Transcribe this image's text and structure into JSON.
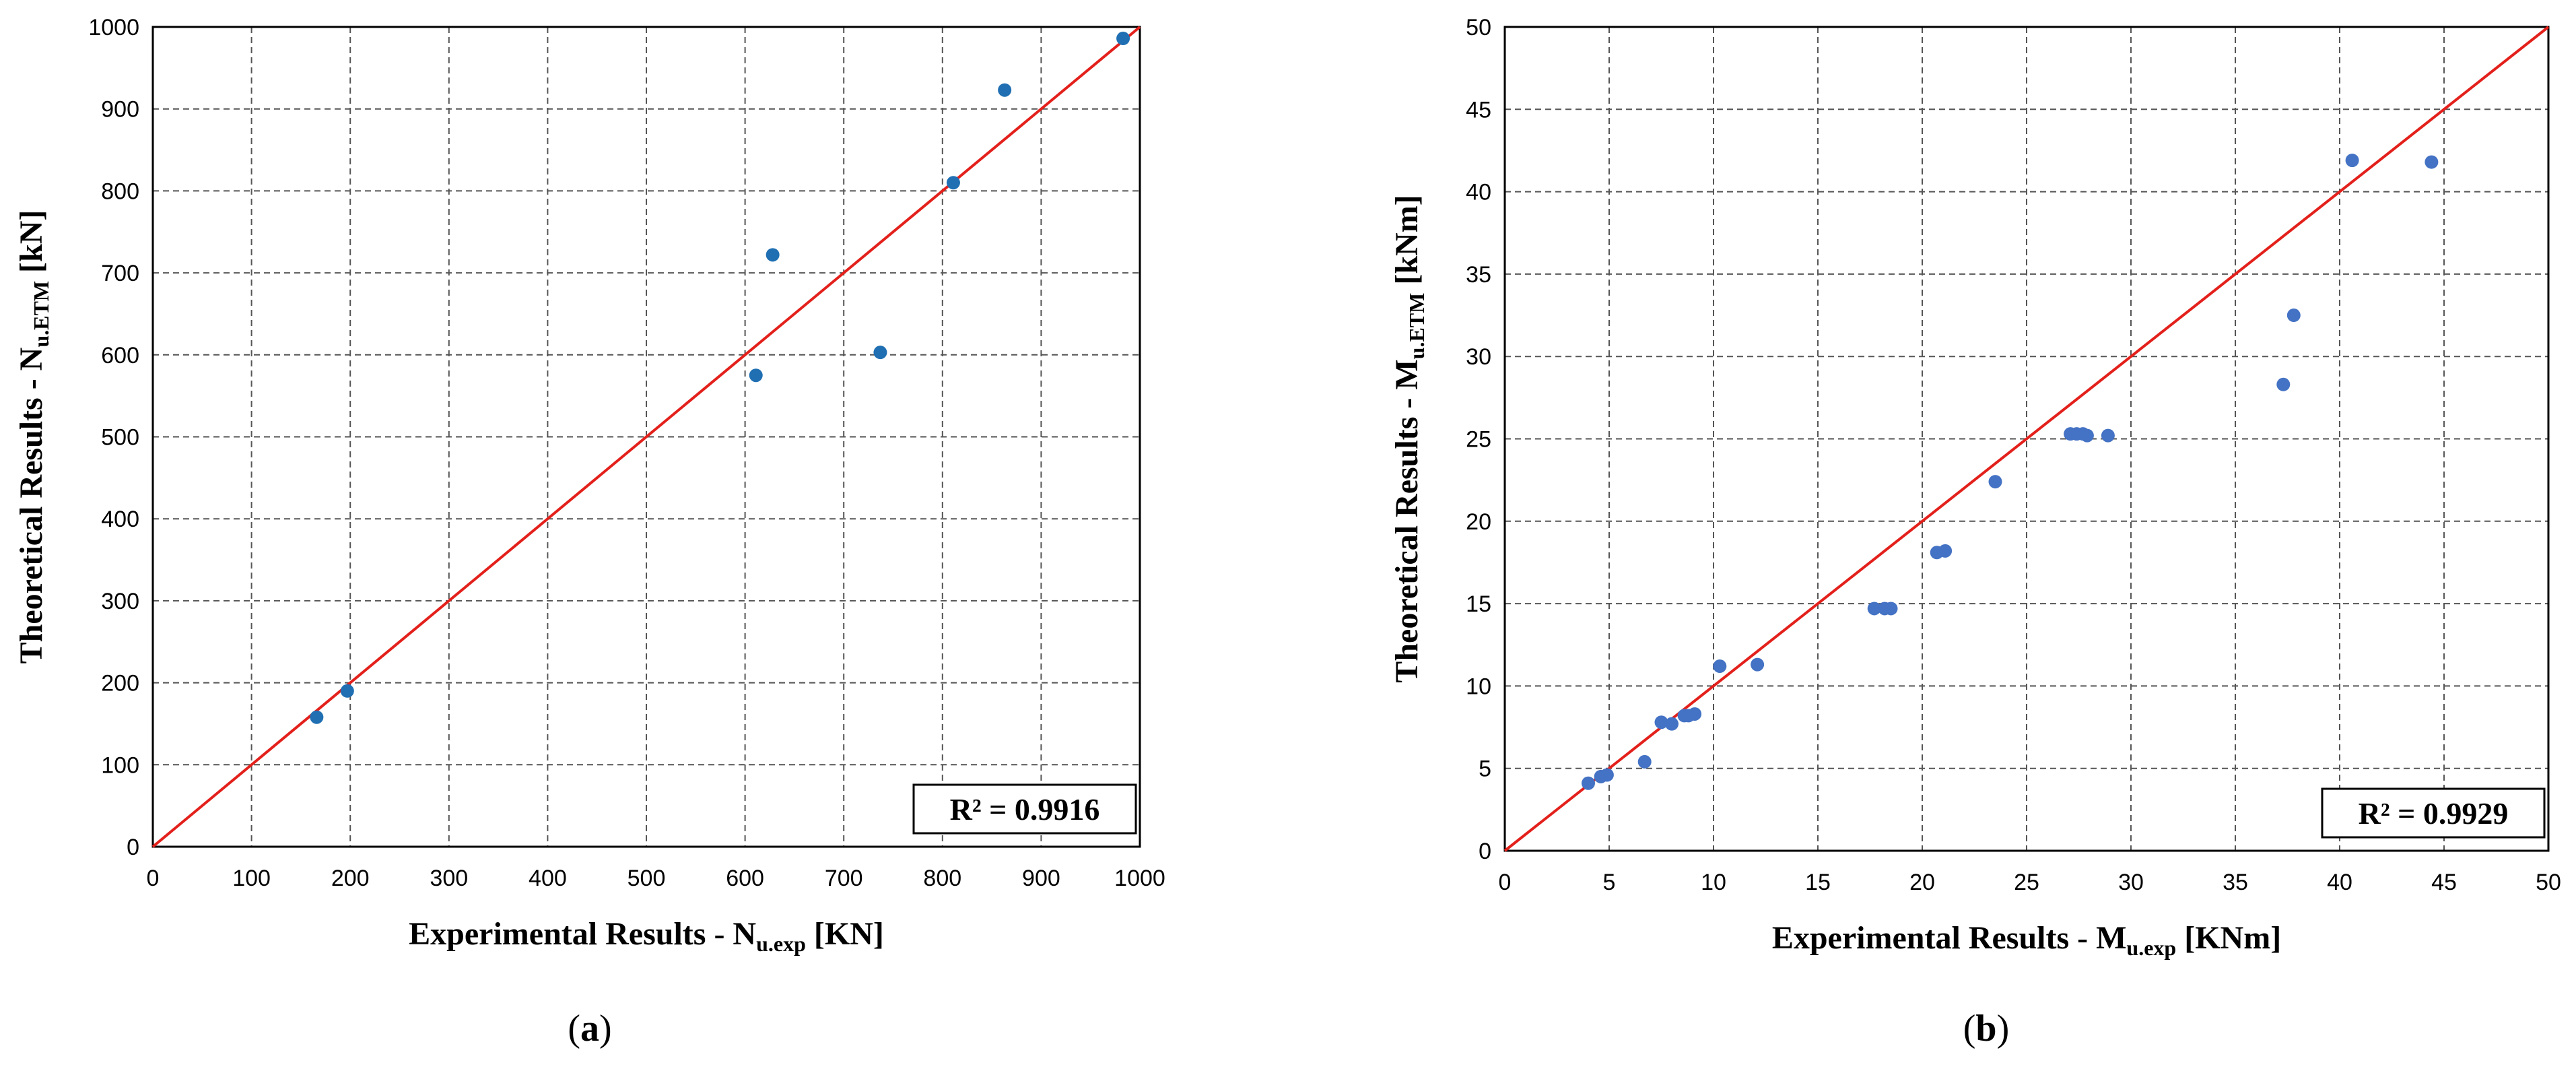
{
  "chart_data": [
    {
      "type": "scatter",
      "panel_label": "a",
      "xlabel": {
        "main": "Experimental Results - N",
        "sub": "u.exp",
        "unit": " [KN]"
      },
      "ylabel": {
        "main": "Theoretical Results - N",
        "sub": "u.ETM",
        "unit": " [kN]"
      },
      "xlim": [
        0,
        1000
      ],
      "ylim": [
        0,
        1000
      ],
      "xticks": [
        0,
        100,
        200,
        300,
        400,
        500,
        600,
        700,
        800,
        900,
        1000
      ],
      "yticks": [
        0,
        100,
        200,
        300,
        400,
        500,
        600,
        700,
        800,
        900,
        1000
      ],
      "grid": true,
      "r2_label": "R² = 0.9916",
      "reference_line": {
        "x": [
          0,
          1000
        ],
        "y": [
          0,
          1000
        ],
        "color": "#e3201b"
      },
      "marker_color": "#1f6fb2",
      "points": [
        {
          "x": 166,
          "y": 158
        },
        {
          "x": 197,
          "y": 190
        },
        {
          "x": 611,
          "y": 575
        },
        {
          "x": 628,
          "y": 722
        },
        {
          "x": 737,
          "y": 603
        },
        {
          "x": 811,
          "y": 810
        },
        {
          "x": 863,
          "y": 923
        },
        {
          "x": 983,
          "y": 986
        }
      ]
    },
    {
      "type": "scatter",
      "panel_label": "b",
      "xlabel": {
        "main": "Experimental Results - M",
        "sub": "u.exp",
        "unit": " [KNm]"
      },
      "ylabel": {
        "main": "Theoretical Results - M",
        "sub": "u.ETM",
        "unit": " [kNm]"
      },
      "xlim": [
        0,
        50
      ],
      "ylim": [
        0,
        50
      ],
      "xticks": [
        0,
        5,
        10,
        15,
        20,
        25,
        30,
        35,
        40,
        45,
        50
      ],
      "yticks": [
        0,
        5,
        10,
        15,
        20,
        25,
        30,
        35,
        40,
        45,
        50
      ],
      "grid": true,
      "r2_label": "R² = 0.9929",
      "reference_line": {
        "x": [
          0,
          50
        ],
        "y": [
          0,
          50
        ],
        "color": "#e3201b"
      },
      "marker_color": "#4472c4",
      "points": [
        {
          "x": 4.0,
          "y": 4.1
        },
        {
          "x": 4.6,
          "y": 4.5
        },
        {
          "x": 4.9,
          "y": 4.6
        },
        {
          "x": 6.7,
          "y": 5.4
        },
        {
          "x": 7.5,
          "y": 7.8
        },
        {
          "x": 8.0,
          "y": 7.7
        },
        {
          "x": 8.6,
          "y": 8.2
        },
        {
          "x": 8.8,
          "y": 8.2
        },
        {
          "x": 9.1,
          "y": 8.3
        },
        {
          "x": 10.3,
          "y": 11.2
        },
        {
          "x": 12.1,
          "y": 11.3
        },
        {
          "x": 17.7,
          "y": 14.7
        },
        {
          "x": 18.2,
          "y": 14.7
        },
        {
          "x": 18.5,
          "y": 14.7
        },
        {
          "x": 20.7,
          "y": 18.1
        },
        {
          "x": 21.1,
          "y": 18.2
        },
        {
          "x": 23.5,
          "y": 22.4
        },
        {
          "x": 27.1,
          "y": 25.3
        },
        {
          "x": 27.4,
          "y": 25.3
        },
        {
          "x": 27.7,
          "y": 25.3
        },
        {
          "x": 27.9,
          "y": 25.2
        },
        {
          "x": 28.9,
          "y": 25.2
        },
        {
          "x": 37.3,
          "y": 28.3
        },
        {
          "x": 37.8,
          "y": 32.5
        },
        {
          "x": 40.6,
          "y": 41.9
        },
        {
          "x": 44.4,
          "y": 41.8
        }
      ]
    }
  ]
}
